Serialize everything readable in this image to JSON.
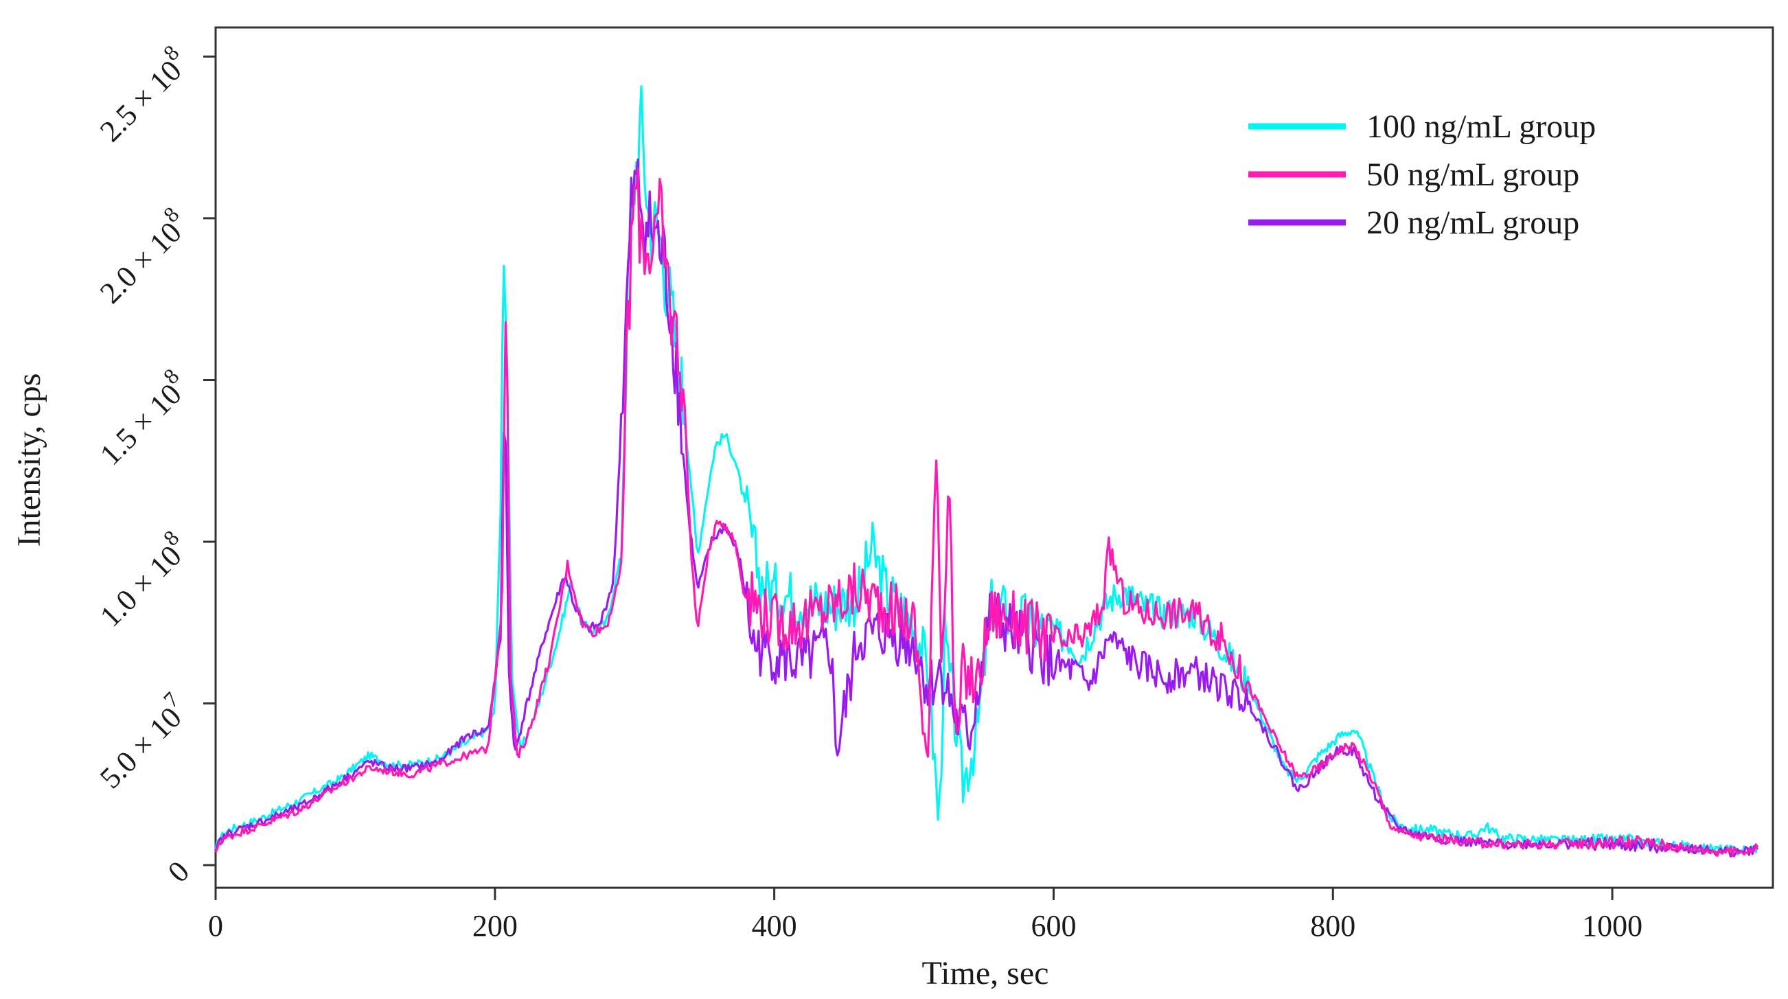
{
  "chart_data": {
    "type": "line",
    "title": "",
    "xlabel": "Time, sec",
    "ylabel": "Intensity, cps",
    "xlim": [
      0,
      1115
    ],
    "ylim": [
      -7000000,
      259000000
    ],
    "x_ticks": [
      0,
      200,
      400,
      600,
      800,
      1000
    ],
    "x_tick_labels": [
      "0",
      "200",
      "400",
      "600",
      "800",
      "1000"
    ],
    "y_ticks": [
      0,
      50000000,
      100000000,
      150000000,
      200000000,
      250000000
    ],
    "y_tick_labels": [
      {
        "mantissa": "0",
        "exp": ""
      },
      {
        "mantissa": "5.0 × 10",
        "exp": "7"
      },
      {
        "mantissa": "1.0 × 10",
        "exp": "8"
      },
      {
        "mantissa": "1.5 × 10",
        "exp": "8"
      },
      {
        "mantissa": "2.0 × 10",
        "exp": "8"
      },
      {
        "mantissa": "2.5 × 10",
        "exp": "8"
      }
    ],
    "grid": false,
    "legend_position": "top-right",
    "colors": {
      "100": "#00F5F5",
      "50": "#FF1AB3",
      "20": "#9B1AF0"
    },
    "series": [
      {
        "name": "100 ng/mL group",
        "color": "#00F5F5",
        "x": [
          0,
          2,
          10,
          30,
          60,
          90,
          110,
          125,
          140,
          160,
          180,
          195,
          200,
          204,
          206,
          209,
          212,
          218,
          230,
          245,
          255,
          262,
          270,
          280,
          290,
          295,
          300,
          305,
          310,
          318,
          325,
          333,
          340,
          345,
          352,
          358,
          365,
          372,
          380,
          390,
          400,
          420,
          440,
          460,
          470,
          480,
          490,
          500,
          510,
          518,
          522,
          528,
          535,
          545,
          555,
          570,
          590,
          610,
          620,
          630,
          640,
          650,
          665,
          680,
          700,
          720,
          740,
          755,
          765,
          775,
          790,
          805,
          815,
          820,
          830,
          840,
          850,
          860,
          870,
          880,
          890,
          900,
          910,
          920,
          950,
          1000,
          1010,
          1030,
          1050,
          1070,
          1090,
          1105
        ],
        "y": [
          4000000,
          8000000,
          11000000,
          14000000,
          20000000,
          27000000,
          34000000,
          31000000,
          31000000,
          33000000,
          38000000,
          42000000,
          48000000,
          110000000,
          191000000,
          150000000,
          60000000,
          35000000,
          48000000,
          70000000,
          88000000,
          75000000,
          72000000,
          75000000,
          95000000,
          175000000,
          212000000,
          230000000,
          200000000,
          195000000,
          175000000,
          150000000,
          120000000,
          95000000,
          115000000,
          130000000,
          133000000,
          125000000,
          110000000,
          88000000,
          85000000,
          82000000,
          80000000,
          83000000,
          98000000,
          85000000,
          80000000,
          75000000,
          60000000,
          12000000,
          70000000,
          50000000,
          25000000,
          40000000,
          80000000,
          78000000,
          73000000,
          70000000,
          65000000,
          75000000,
          82000000,
          85000000,
          80000000,
          78000000,
          78000000,
          68000000,
          55000000,
          40000000,
          30000000,
          26000000,
          34000000,
          40000000,
          42000000,
          38000000,
          26000000,
          15000000,
          12000000,
          11000000,
          11000000,
          10000000,
          9500000,
          9000000,
          12000000,
          8500000,
          7800000,
          7500000,
          7500000,
          6500000,
          6000000,
          5000000,
          4500000,
          5500000
        ]
      },
      {
        "name": "50 ng/mL group",
        "color": "#FF1AB3",
        "x": [
          0,
          2,
          10,
          30,
          60,
          90,
          110,
          125,
          140,
          160,
          180,
          195,
          205,
          208,
          211,
          216,
          225,
          240,
          252,
          262,
          270,
          280,
          290,
          295,
          300,
          305,
          310,
          318,
          325,
          335,
          340,
          345,
          352,
          360,
          365,
          372,
          378,
          385,
          400,
          420,
          440,
          460,
          480,
          500,
          510,
          516,
          520,
          525,
          530,
          535,
          545,
          555,
          570,
          590,
          610,
          625,
          635,
          640,
          650,
          665,
          680,
          700,
          720,
          740,
          760,
          775,
          790,
          805,
          815,
          830,
          840,
          850,
          860,
          880,
          900,
          920,
          950,
          1000,
          1010,
          1030,
          1050,
          1070,
          1090,
          1105
        ],
        "y": [
          3000000,
          7000000,
          9000000,
          12000000,
          17000000,
          25000000,
          30000000,
          29000000,
          28000000,
          31000000,
          34000000,
          36000000,
          80000000,
          183000000,
          60000000,
          33000000,
          42000000,
          65000000,
          93000000,
          75000000,
          72000000,
          74000000,
          90000000,
          165000000,
          210000000,
          195000000,
          190000000,
          200000000,
          175000000,
          150000000,
          100000000,
          72000000,
          95000000,
          107000000,
          105000000,
          100000000,
          85000000,
          82000000,
          75000000,
          75000000,
          80000000,
          85000000,
          80000000,
          75000000,
          30000000,
          134000000,
          60000000,
          125000000,
          30000000,
          60000000,
          55000000,
          78000000,
          76000000,
          72000000,
          68000000,
          72000000,
          80000000,
          98000000,
          82000000,
          78000000,
          78000000,
          78000000,
          70000000,
          55000000,
          38000000,
          27000000,
          30000000,
          36000000,
          37000000,
          25000000,
          13000000,
          10000000,
          9000000,
          8000000,
          7000000,
          6500000,
          6500000,
          7000000,
          7500000,
          6500000,
          5500000,
          4500000,
          4000000,
          5500000
        ]
      },
      {
        "name": "20 ng/mL group",
        "color": "#9B1AF0",
        "x": [
          0,
          2,
          10,
          30,
          60,
          90,
          110,
          125,
          140,
          160,
          180,
          195,
          204,
          207,
          210,
          214,
          220,
          235,
          250,
          257,
          265,
          275,
          285,
          293,
          298,
          302,
          308,
          315,
          322,
          330,
          338,
          345,
          355,
          365,
          375,
          385,
          400,
          420,
          440,
          445,
          460,
          480,
          500,
          510,
          520,
          530,
          540,
          555,
          570,
          590,
          600,
          615,
          625,
          640,
          660,
          680,
          700,
          720,
          740,
          760,
          775,
          790,
          805,
          815,
          830,
          845,
          860,
          880,
          900,
          920,
          950,
          1000,
          1010,
          1030,
          1050,
          1070,
          1090,
          1105
        ],
        "y": [
          3000000,
          7000000,
          10000000,
          13000000,
          18000000,
          26000000,
          32000000,
          30000000,
          30000000,
          32000000,
          40000000,
          42000000,
          70000000,
          150000000,
          60000000,
          34000000,
          45000000,
          70000000,
          90000000,
          80000000,
          73000000,
          74000000,
          88000000,
          160000000,
          205000000,
          210000000,
          198000000,
          195000000,
          185000000,
          155000000,
          110000000,
          85000000,
          100000000,
          105000000,
          95000000,
          68000000,
          65000000,
          62000000,
          68000000,
          35000000,
          70000000,
          72000000,
          68000000,
          55000000,
          60000000,
          45000000,
          40000000,
          78000000,
          72000000,
          66000000,
          62000000,
          60000000,
          55000000,
          70000000,
          62000000,
          58000000,
          60000000,
          55000000,
          50000000,
          35000000,
          23000000,
          30000000,
          36000000,
          35000000,
          22000000,
          12000000,
          9500000,
          8000000,
          7000000,
          6500000,
          6500000,
          6500000,
          6000000,
          6000000,
          5500000,
          4500000,
          4000000,
          5000000
        ]
      }
    ]
  }
}
